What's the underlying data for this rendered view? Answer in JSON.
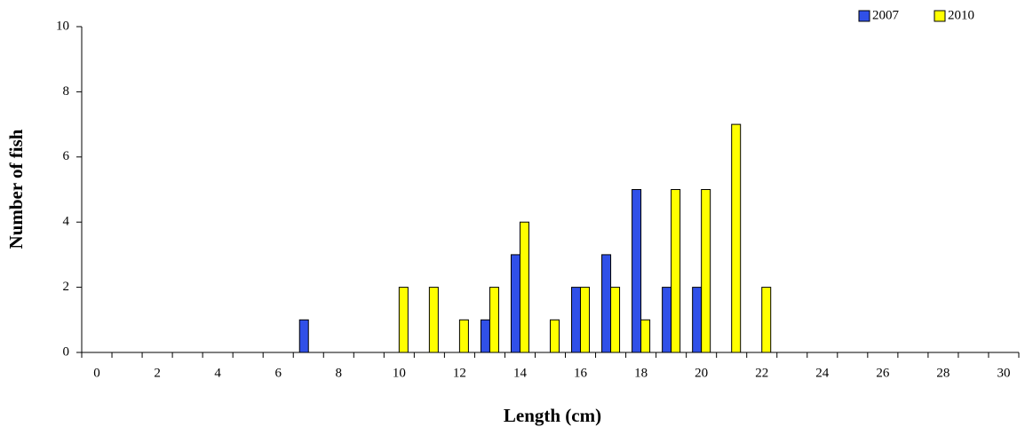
{
  "chart_data": {
    "type": "bar",
    "x_label": "Length (cm)",
    "y_label": "Number of fish",
    "categories": [
      "0",
      null,
      "2",
      null,
      "4",
      null,
      "6",
      null,
      "8",
      null,
      "10",
      null,
      "12",
      null,
      "14",
      null,
      "16",
      null,
      "18",
      null,
      "20",
      null,
      "22",
      null,
      "24",
      null,
      "26",
      null,
      "28",
      null,
      "30"
    ],
    "series": [
      {
        "name": "2007",
        "color": "#3050e8",
        "values": [
          0,
          0,
          0,
          0,
          0,
          0,
          0,
          1,
          0,
          0,
          0,
          0,
          0,
          1,
          3,
          0,
          2,
          3,
          5,
          2,
          2,
          0,
          0,
          0,
          0,
          0,
          0,
          0,
          0,
          0,
          0
        ]
      },
      {
        "name": "2010",
        "color": "#ffff00",
        "values": [
          0,
          0,
          0,
          0,
          0,
          0,
          0,
          0,
          0,
          0,
          2,
          2,
          1,
          2,
          4,
          1,
          2,
          2,
          1,
          5,
          5,
          7,
          2,
          0,
          0,
          0,
          0,
          0,
          0,
          0,
          0
        ]
      }
    ],
    "ylim": [
      0,
      10
    ],
    "yticks": [
      0,
      2,
      4,
      6,
      8,
      10
    ],
    "grid": false,
    "legend": "top-right"
  }
}
